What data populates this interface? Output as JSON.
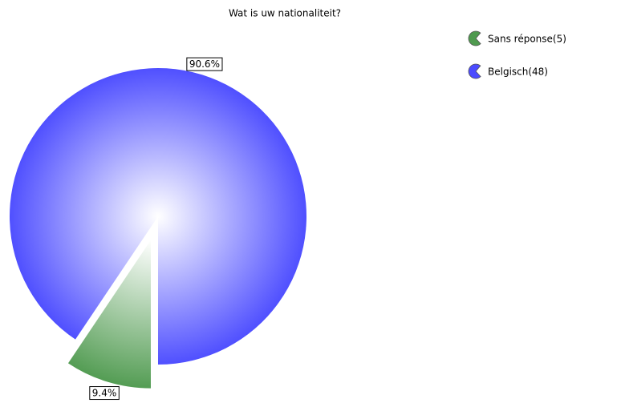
{
  "chart_data": {
    "type": "pie",
    "title": "Wat is uw nationaliteit?",
    "categories": [
      "Sans réponse(5)",
      "Belgisch(48)"
    ],
    "values": [
      9.4,
      90.6
    ],
    "value_labels": [
      "9.4%",
      "90.6%"
    ],
    "colors": [
      "#4f9a4f",
      "#4b4bff"
    ],
    "legend": "top-right"
  }
}
